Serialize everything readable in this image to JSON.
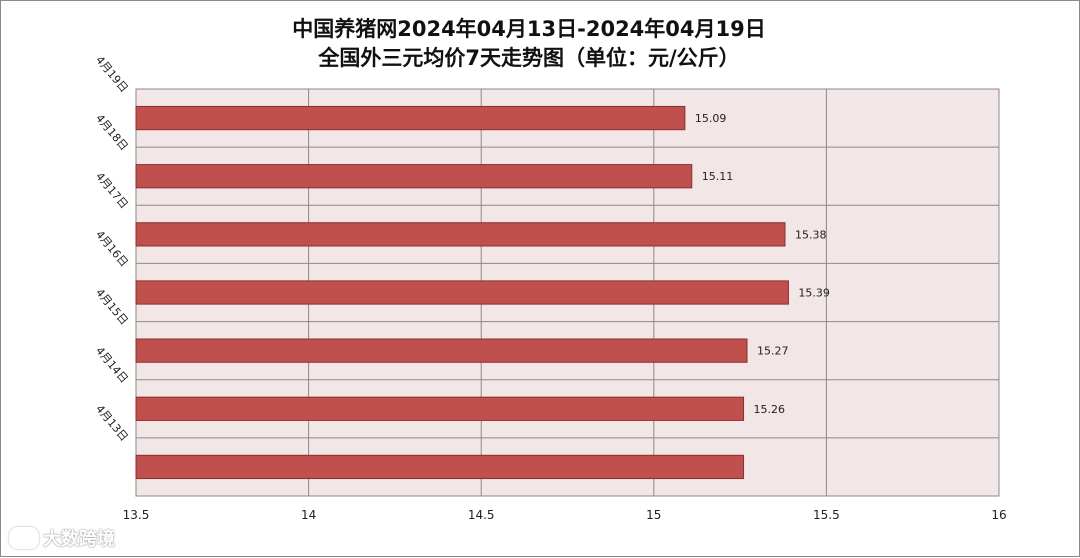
{
  "title_line1": "中国养猪网2024年04月13日-2024年04月19日",
  "title_line2": "全国外三元均价7天走势图（单位：元/公斤）",
  "watermark": "大数跨境",
  "colors": {
    "bar_fill": "#c0504d",
    "bar_stroke": "#8c2f2c",
    "plot_bg": "#f2e6e6",
    "grid": "#8a8a8a"
  },
  "chart_data": {
    "type": "bar",
    "orientation": "horizontal",
    "categories": [
      "4月19日",
      "4月18日",
      "4月17日",
      "4月16日",
      "4月15日",
      "4月14日",
      "4月13日"
    ],
    "values": [
      15.09,
      15.11,
      15.38,
      15.39,
      15.27,
      15.26,
      15.26
    ],
    "data_labels": [
      "15.09",
      "15.11",
      "15.38",
      "15.39",
      "15.27",
      "15.26",
      ""
    ],
    "xlim": [
      13.5,
      16
    ],
    "xticks": [
      13.5,
      14,
      14.5,
      15,
      15.5,
      16
    ],
    "xtick_labels": [
      "13.5",
      "14",
      "14.5",
      "15",
      "15.5",
      "16"
    ],
    "grid": true,
    "legend": "none"
  }
}
